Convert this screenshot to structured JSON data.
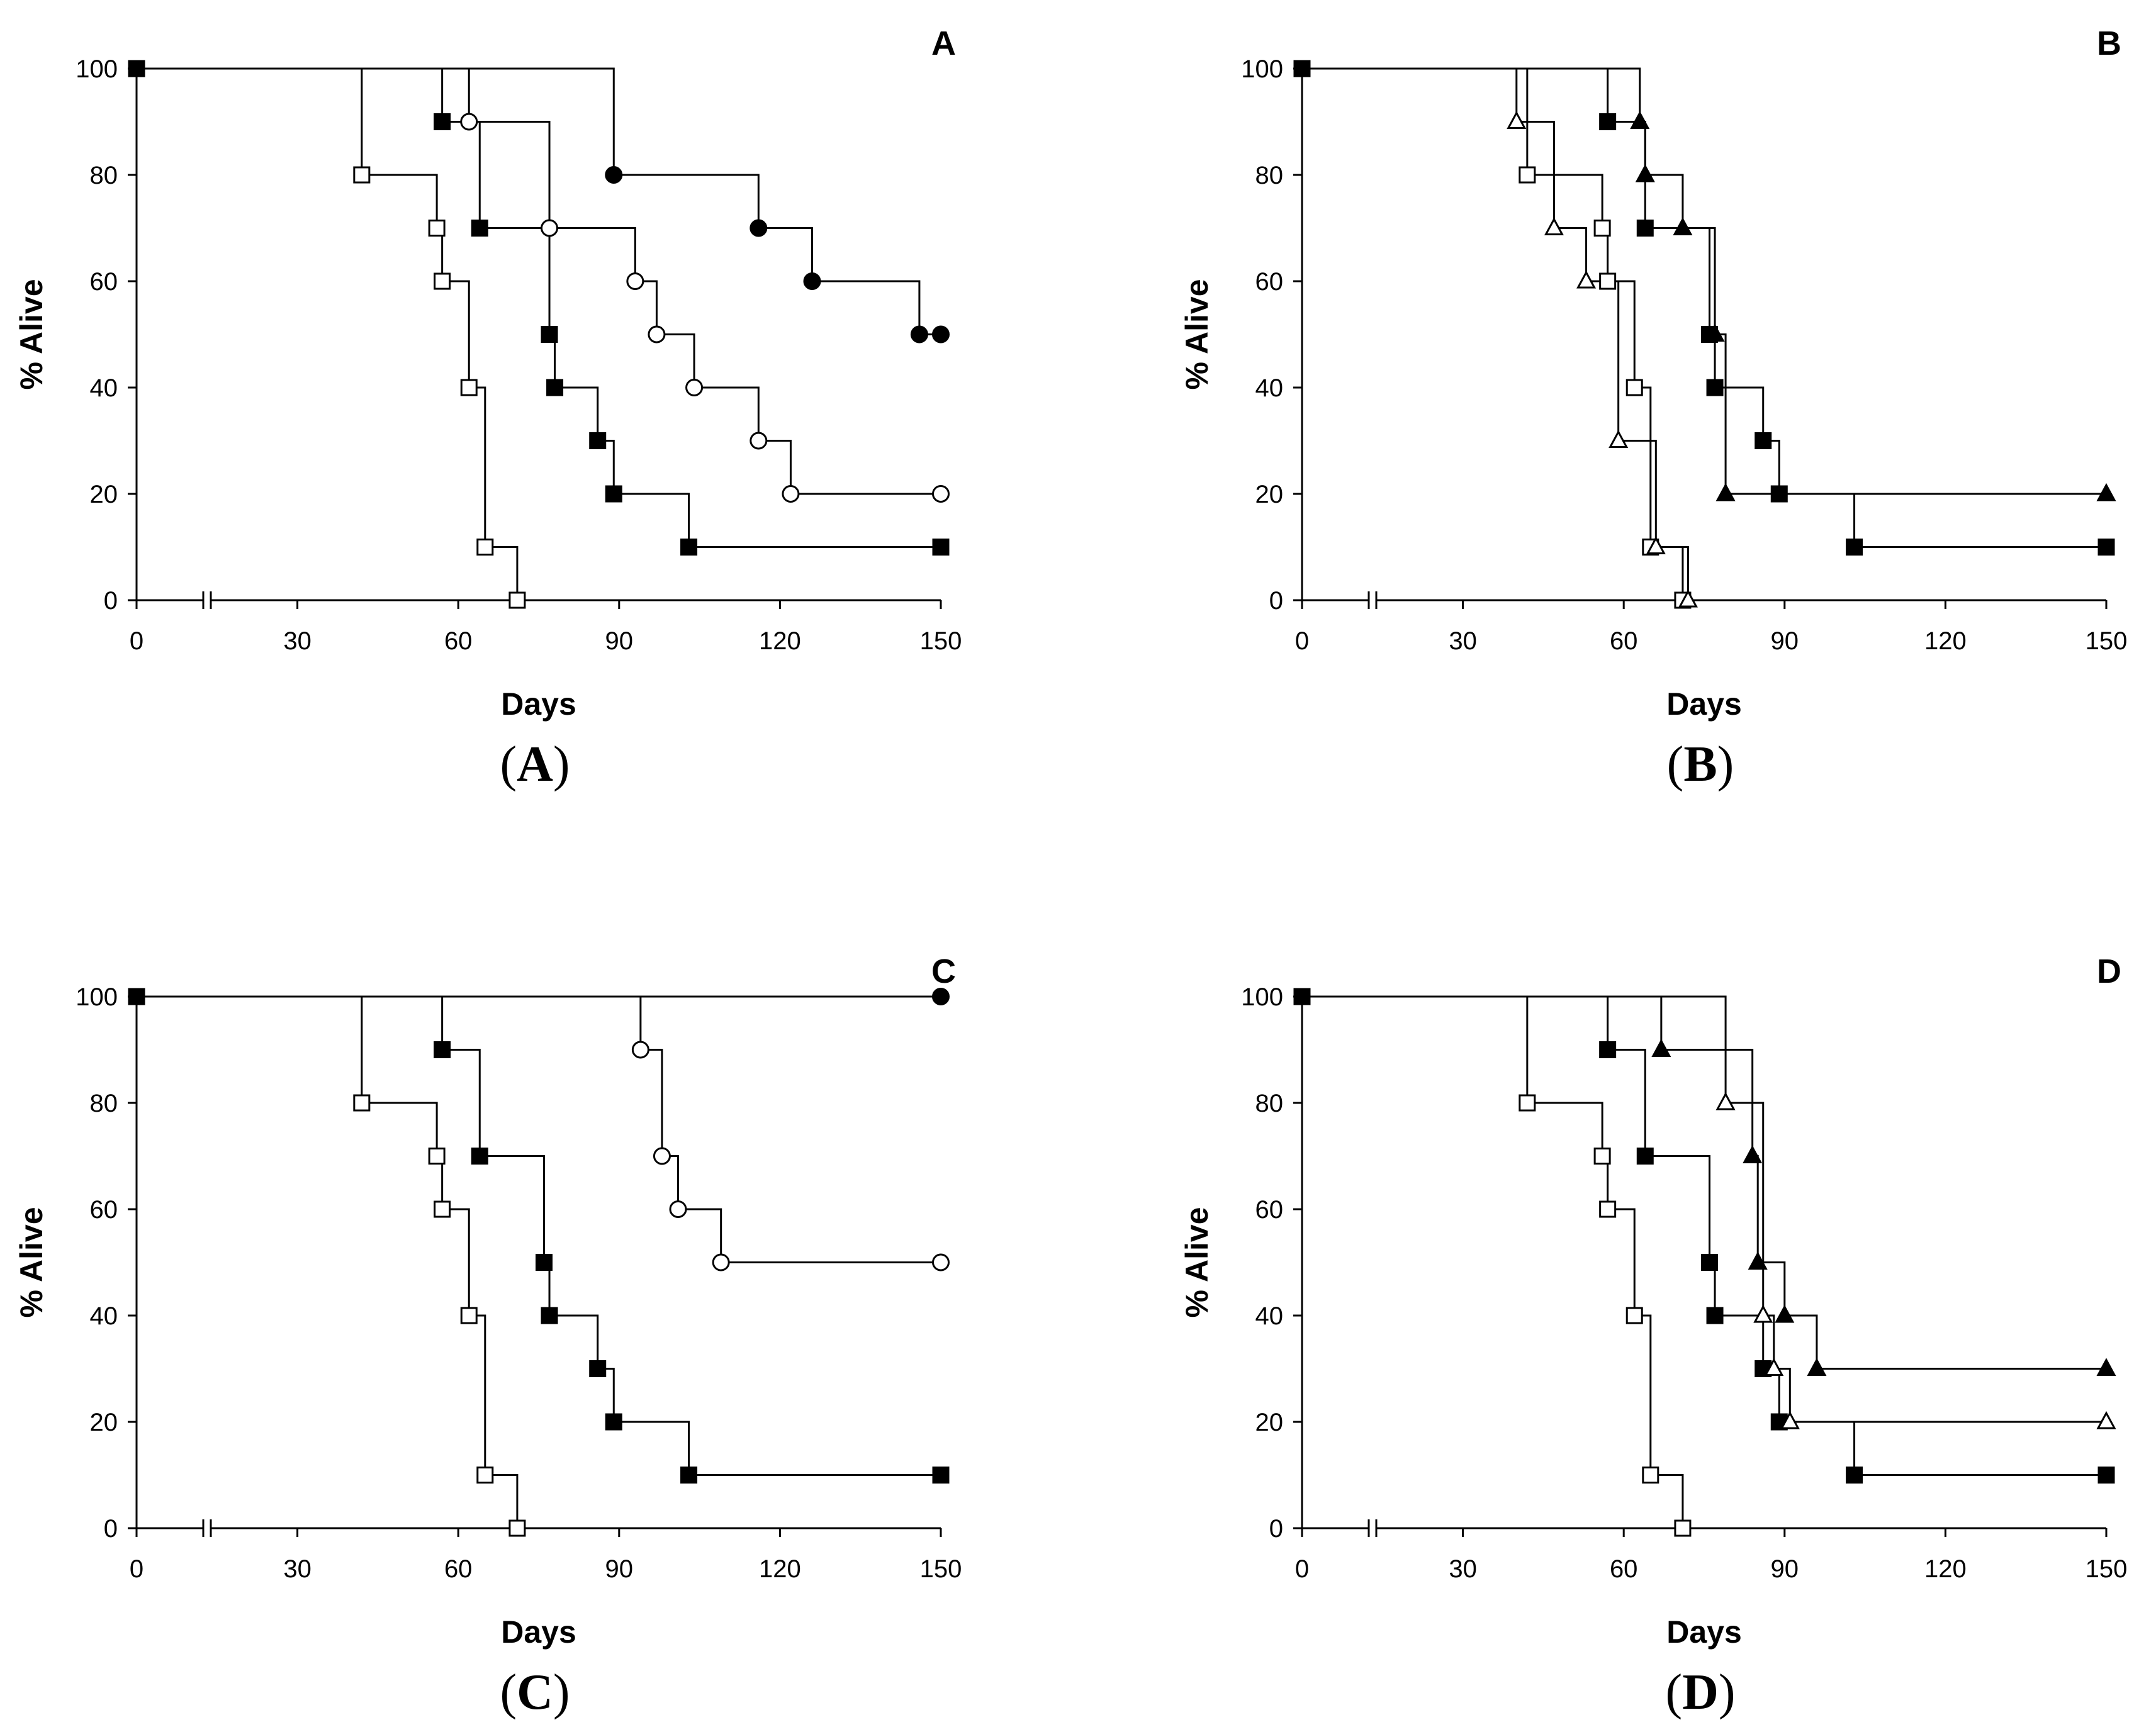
{
  "figure": {
    "captions": [
      "A",
      "B",
      "C",
      "D"
    ]
  },
  "chart_data": [
    {
      "type": "line",
      "subtype": "kaplan-meier step",
      "panel_label": "A",
      "xlabel": "Days",
      "ylabel": "% Alive",
      "xlim": [
        0,
        150
      ],
      "ylim": [
        0,
        100
      ],
      "xticks": [
        0,
        30,
        60,
        90,
        120,
        150
      ],
      "yticks": [
        0,
        20,
        40,
        60,
        80,
        100
      ],
      "axis_break_x": true,
      "series": [
        {
          "marker": "open-square",
          "points": [
            [
              0,
              100
            ],
            [
              42,
              80
            ],
            [
              56,
              70
            ],
            [
              57,
              60
            ],
            [
              62,
              40
            ],
            [
              65,
              10
            ],
            [
              71,
              0
            ]
          ]
        },
        {
          "marker": "filled-square",
          "points": [
            [
              0,
              100
            ],
            [
              57,
              90
            ],
            [
              64,
              70
            ],
            [
              77,
              50
            ],
            [
              78,
              40
            ],
            [
              86,
              30
            ],
            [
              89,
              20
            ],
            [
              103,
              10
            ],
            [
              150,
              10
            ]
          ]
        },
        {
          "marker": "open-circle",
          "points": [
            [
              0,
              100
            ],
            [
              62,
              90
            ],
            [
              77,
              70
            ],
            [
              93,
              60
            ],
            [
              97,
              50
            ],
            [
              104,
              40
            ],
            [
              116,
              30
            ],
            [
              122,
              20
            ],
            [
              150,
              20
            ]
          ]
        },
        {
          "marker": "filled-circle",
          "points": [
            [
              0,
              100
            ],
            [
              89,
              80
            ],
            [
              116,
              70
            ],
            [
              126,
              60
            ],
            [
              146,
              50
            ],
            [
              150,
              50
            ]
          ]
        }
      ]
    },
    {
      "type": "line",
      "subtype": "kaplan-meier step",
      "panel_label": "B",
      "xlabel": "Days",
      "ylabel": "% Alive",
      "xlim": [
        0,
        150
      ],
      "ylim": [
        0,
        100
      ],
      "xticks": [
        0,
        30,
        60,
        90,
        120,
        150
      ],
      "yticks": [
        0,
        20,
        40,
        60,
        80,
        100
      ],
      "axis_break_x": true,
      "series": [
        {
          "marker": "open-square",
          "points": [
            [
              0,
              100
            ],
            [
              42,
              80
            ],
            [
              56,
              70
            ],
            [
              57,
              60
            ],
            [
              62,
              40
            ],
            [
              65,
              10
            ],
            [
              71,
              0
            ]
          ]
        },
        {
          "marker": "filled-square",
          "points": [
            [
              0,
              100
            ],
            [
              57,
              90
            ],
            [
              64,
              70
            ],
            [
              76,
              50
            ],
            [
              77,
              40
            ],
            [
              86,
              30
            ],
            [
              89,
              20
            ],
            [
              103,
              10
            ],
            [
              150,
              10
            ]
          ]
        },
        {
          "marker": "open-triangle",
          "points": [
            [
              0,
              100
            ],
            [
              40,
              90
            ],
            [
              47,
              70
            ],
            [
              53,
              60
            ],
            [
              59,
              30
            ],
            [
              66,
              10
            ],
            [
              72,
              0
            ]
          ]
        },
        {
          "marker": "filled-triangle",
          "points": [
            [
              0,
              100
            ],
            [
              63,
              90
            ],
            [
              64,
              80
            ],
            [
              71,
              70
            ],
            [
              77,
              50
            ],
            [
              79,
              20
            ],
            [
              150,
              20
            ]
          ]
        }
      ]
    },
    {
      "type": "line",
      "subtype": "kaplan-meier step",
      "panel_label": "C",
      "xlabel": "Days",
      "ylabel": "% Alive",
      "xlim": [
        0,
        150
      ],
      "ylim": [
        0,
        100
      ],
      "xticks": [
        0,
        30,
        60,
        90,
        120,
        150
      ],
      "yticks": [
        0,
        20,
        40,
        60,
        80,
        100
      ],
      "axis_break_x": true,
      "series": [
        {
          "marker": "open-square",
          "points": [
            [
              0,
              100
            ],
            [
              42,
              80
            ],
            [
              56,
              70
            ],
            [
              57,
              60
            ],
            [
              62,
              40
            ],
            [
              65,
              10
            ],
            [
              71,
              0
            ]
          ]
        },
        {
          "marker": "filled-square",
          "points": [
            [
              0,
              100
            ],
            [
              57,
              90
            ],
            [
              64,
              70
            ],
            [
              76,
              50
            ],
            [
              77,
              40
            ],
            [
              86,
              30
            ],
            [
              89,
              20
            ],
            [
              103,
              10
            ],
            [
              150,
              10
            ]
          ]
        },
        {
          "marker": "open-circle",
          "points": [
            [
              0,
              100
            ],
            [
              94,
              90
            ],
            [
              98,
              70
            ],
            [
              101,
              60
            ],
            [
              109,
              50
            ],
            [
              150,
              50
            ]
          ]
        },
        {
          "marker": "filled-circle",
          "points": [
            [
              0,
              100
            ],
            [
              150,
              100
            ]
          ]
        }
      ]
    },
    {
      "type": "line",
      "subtype": "kaplan-meier step",
      "panel_label": "D",
      "xlabel": "Days",
      "ylabel": "% Alive",
      "xlim": [
        0,
        150
      ],
      "ylim": [
        0,
        100
      ],
      "xticks": [
        0,
        30,
        60,
        90,
        120,
        150
      ],
      "yticks": [
        0,
        20,
        40,
        60,
        80,
        100
      ],
      "axis_break_x": true,
      "series": [
        {
          "marker": "open-square",
          "points": [
            [
              0,
              100
            ],
            [
              42,
              80
            ],
            [
              56,
              70
            ],
            [
              57,
              60
            ],
            [
              62,
              40
            ],
            [
              65,
              10
            ],
            [
              71,
              0
            ]
          ]
        },
        {
          "marker": "filled-square",
          "points": [
            [
              0,
              100
            ],
            [
              57,
              90
            ],
            [
              64,
              70
            ],
            [
              76,
              50
            ],
            [
              77,
              40
            ],
            [
              86,
              30
            ],
            [
              89,
              20
            ],
            [
              103,
              10
            ],
            [
              150,
              10
            ]
          ]
        },
        {
          "marker": "open-triangle",
          "points": [
            [
              0,
              100
            ],
            [
              79,
              80
            ],
            [
              86,
              40
            ],
            [
              88,
              30
            ],
            [
              91,
              20
            ],
            [
              150,
              20
            ]
          ]
        },
        {
          "marker": "filled-triangle",
          "points": [
            [
              0,
              100
            ],
            [
              67,
              90
            ],
            [
              84,
              70
            ],
            [
              85,
              50
            ],
            [
              90,
              40
            ],
            [
              96,
              30
            ],
            [
              150,
              30
            ]
          ]
        }
      ]
    }
  ]
}
